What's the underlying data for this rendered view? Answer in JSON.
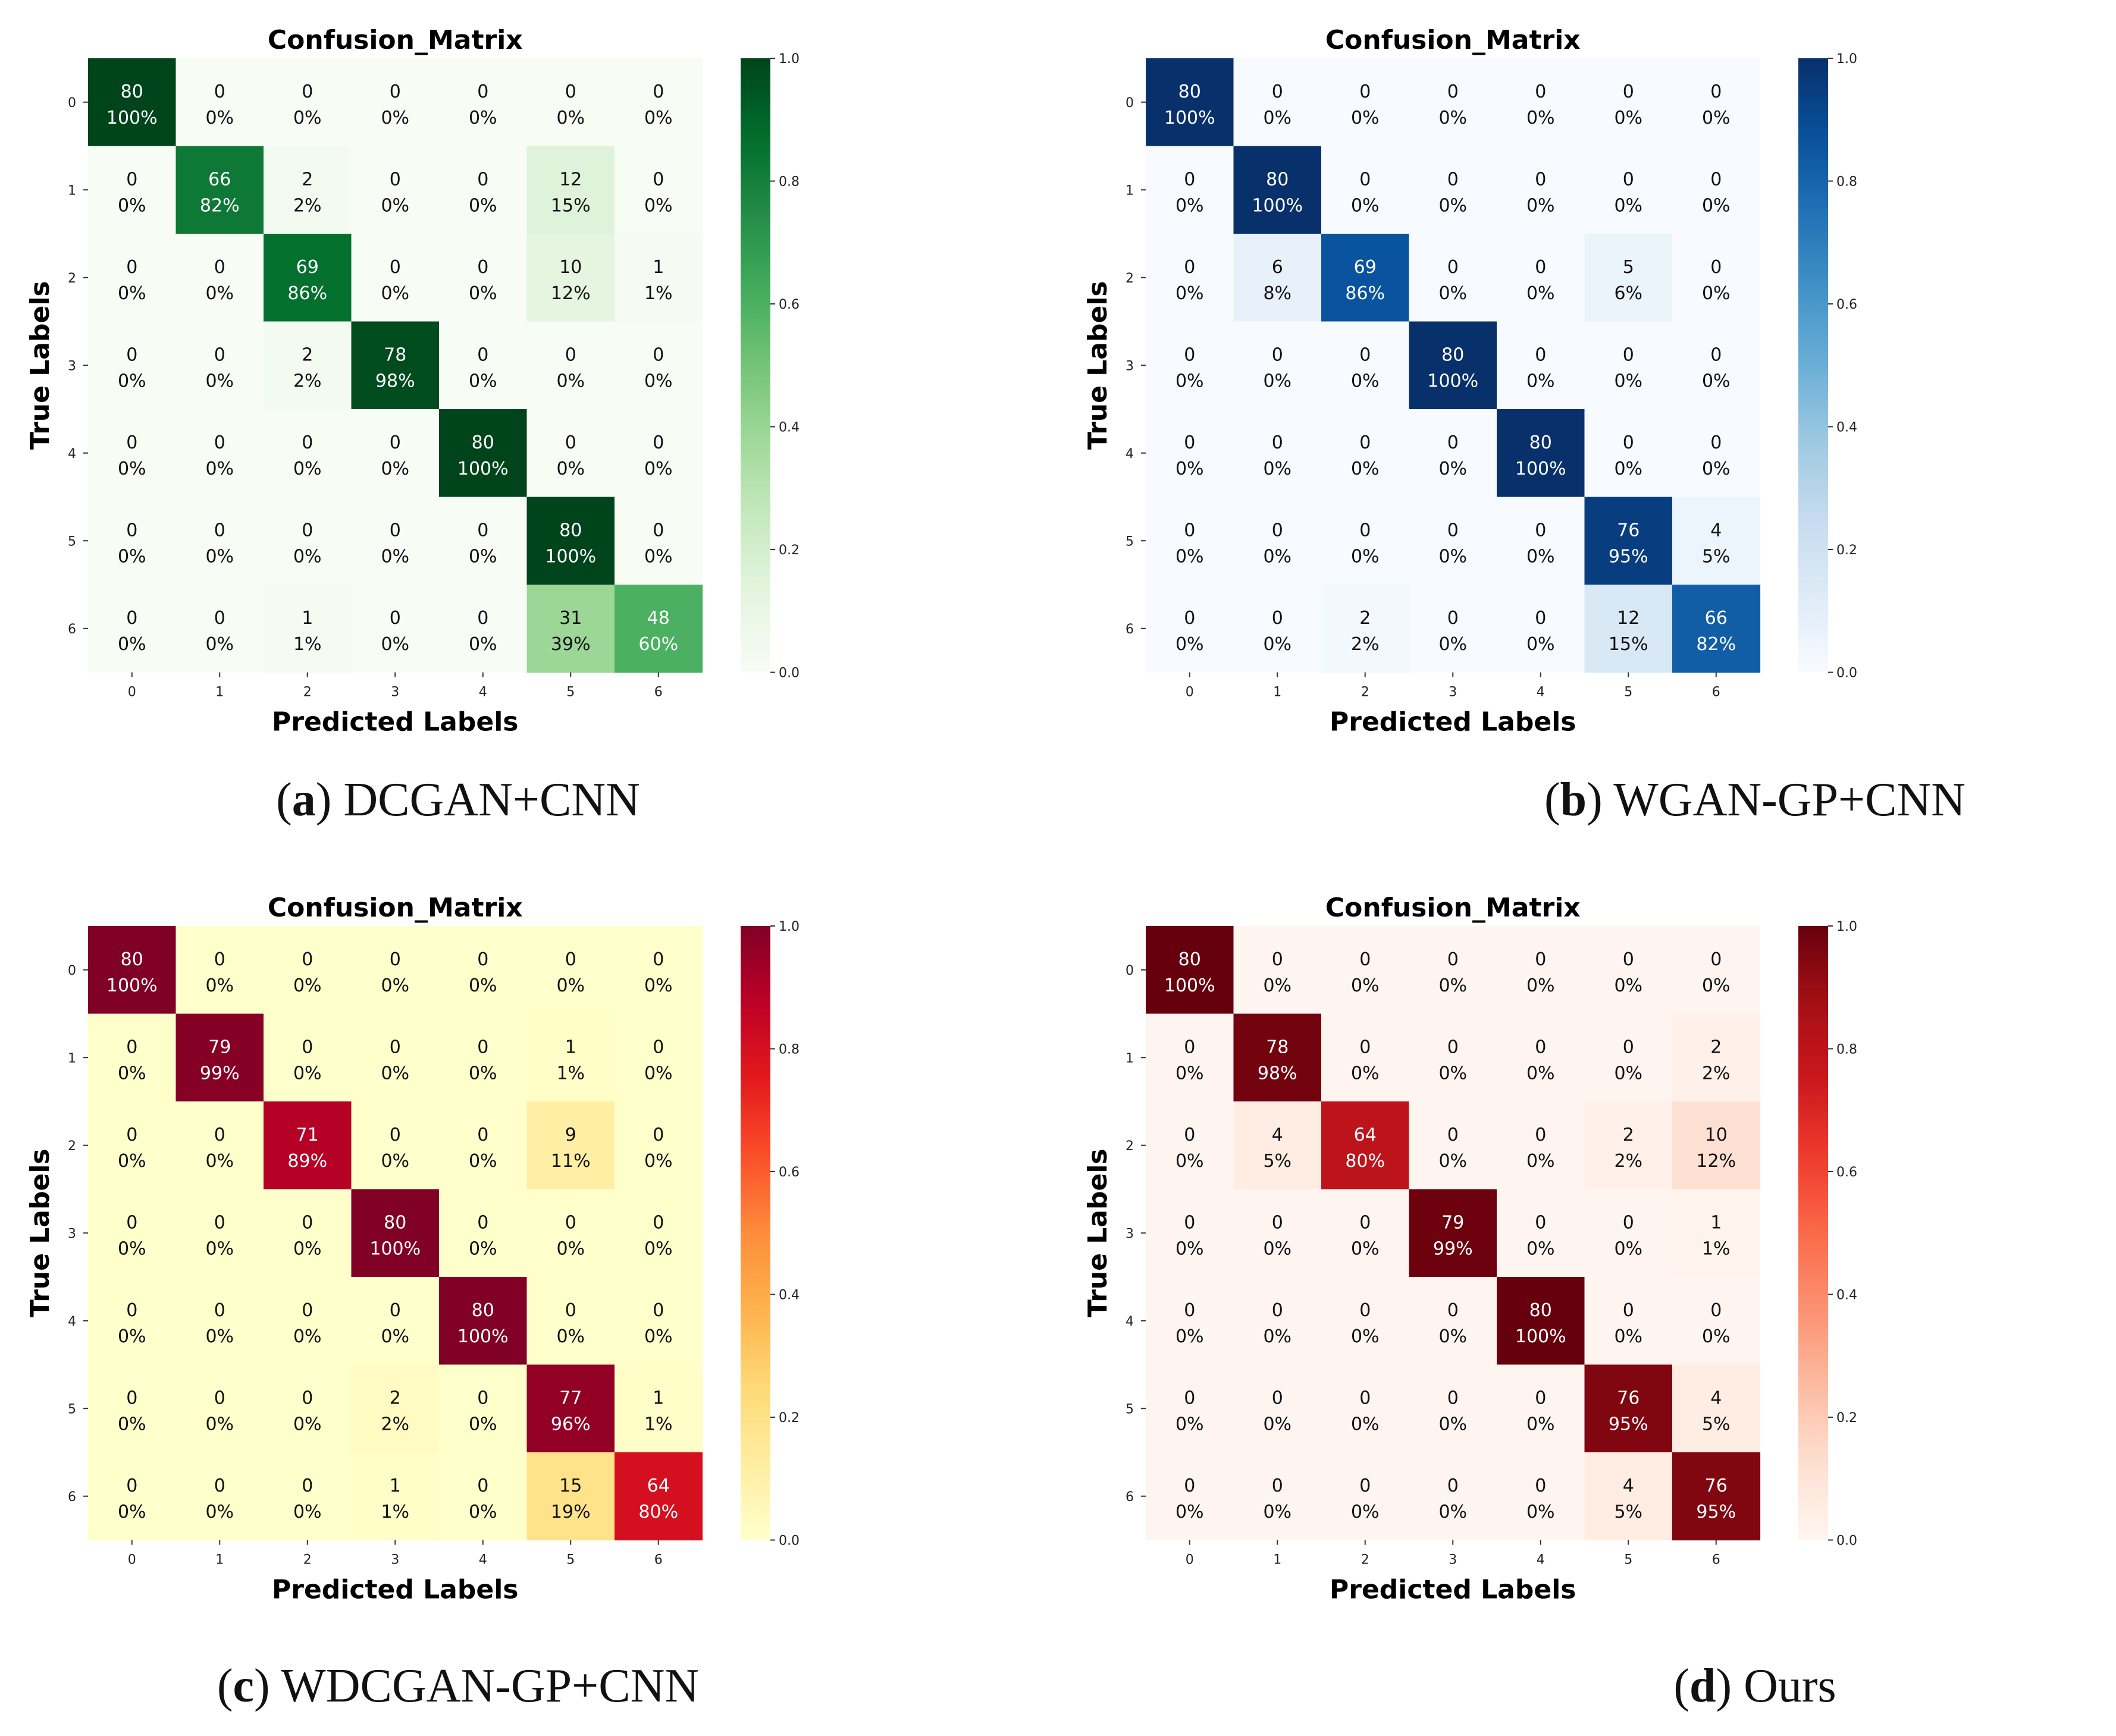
{
  "figure": {
    "captions": [
      {
        "letter": "a",
        "text": "DCGAN+CNN"
      },
      {
        "letter": "b",
        "text": "WGAN-GP+CNN"
      },
      {
        "letter": "c",
        "text": "WDCGAN-GP+CNN"
      },
      {
        "letter": "d",
        "text": "Ours"
      }
    ]
  },
  "chart_data": [
    {
      "type": "heatmap",
      "title": "Confusion_Matrix",
      "xlabel": "Predicted Labels",
      "ylabel": "True Labels",
      "x_ticks": [
        "0",
        "1",
        "2",
        "3",
        "4",
        "5",
        "6"
      ],
      "y_ticks": [
        "0",
        "1",
        "2",
        "3",
        "4",
        "5",
        "6"
      ],
      "colormap": "Greens",
      "color_low": "#f7fcf5",
      "color_high": "#00441b",
      "colorbar_range": [
        0.0,
        1.0
      ],
      "colorbar_ticks": [
        "0.0",
        "0.2",
        "0.4",
        "0.6",
        "0.8",
        "1.0"
      ],
      "counts": [
        [
          80,
          0,
          0,
          0,
          0,
          0,
          0
        ],
        [
          0,
          66,
          2,
          0,
          0,
          12,
          0
        ],
        [
          0,
          0,
          69,
          0,
          0,
          10,
          1
        ],
        [
          0,
          0,
          2,
          78,
          0,
          0,
          0
        ],
        [
          0,
          0,
          0,
          0,
          80,
          0,
          0
        ],
        [
          0,
          0,
          0,
          0,
          0,
          80,
          0
        ],
        [
          0,
          0,
          1,
          0,
          0,
          31,
          48
        ]
      ],
      "percents": [
        [
          "100%",
          "0%",
          "0%",
          "0%",
          "0%",
          "0%",
          "0%"
        ],
        [
          "0%",
          "82%",
          "2%",
          "0%",
          "0%",
          "15%",
          "0%"
        ],
        [
          "0%",
          "0%",
          "86%",
          "0%",
          "0%",
          "12%",
          "1%"
        ],
        [
          "0%",
          "0%",
          "2%",
          "98%",
          "0%",
          "0%",
          "0%"
        ],
        [
          "0%",
          "0%",
          "0%",
          "0%",
          "100%",
          "0%",
          "0%"
        ],
        [
          "0%",
          "0%",
          "0%",
          "0%",
          "0%",
          "100%",
          "0%"
        ],
        [
          "0%",
          "0%",
          "1%",
          "0%",
          "0%",
          "39%",
          "60%"
        ]
      ]
    },
    {
      "type": "heatmap",
      "title": "Confusion_Matrix",
      "xlabel": "Predicted Labels",
      "ylabel": "True Labels",
      "x_ticks": [
        "0",
        "1",
        "2",
        "3",
        "4",
        "5",
        "6"
      ],
      "y_ticks": [
        "0",
        "1",
        "2",
        "3",
        "4",
        "5",
        "6"
      ],
      "colormap": "Blues",
      "color_low": "#f7fbff",
      "color_high": "#08306b",
      "colorbar_range": [
        0.0,
        1.0
      ],
      "colorbar_ticks": [
        "0.0",
        "0.2",
        "0.4",
        "0.6",
        "0.8",
        "1.0"
      ],
      "counts": [
        [
          80,
          0,
          0,
          0,
          0,
          0,
          0
        ],
        [
          0,
          80,
          0,
          0,
          0,
          0,
          0
        ],
        [
          0,
          6,
          69,
          0,
          0,
          5,
          0
        ],
        [
          0,
          0,
          0,
          80,
          0,
          0,
          0
        ],
        [
          0,
          0,
          0,
          0,
          80,
          0,
          0
        ],
        [
          0,
          0,
          0,
          0,
          0,
          76,
          4
        ],
        [
          0,
          0,
          2,
          0,
          0,
          12,
          66
        ]
      ],
      "percents": [
        [
          "100%",
          "0%",
          "0%",
          "0%",
          "0%",
          "0%",
          "0%"
        ],
        [
          "0%",
          "100%",
          "0%",
          "0%",
          "0%",
          "0%",
          "0%"
        ],
        [
          "0%",
          "8%",
          "86%",
          "0%",
          "0%",
          "6%",
          "0%"
        ],
        [
          "0%",
          "0%",
          "0%",
          "100%",
          "0%",
          "0%",
          "0%"
        ],
        [
          "0%",
          "0%",
          "0%",
          "0%",
          "100%",
          "0%",
          "0%"
        ],
        [
          "0%",
          "0%",
          "0%",
          "0%",
          "0%",
          "95%",
          "5%"
        ],
        [
          "0%",
          "0%",
          "2%",
          "0%",
          "0%",
          "15%",
          "82%"
        ]
      ]
    },
    {
      "type": "heatmap",
      "title": "Confusion_Matrix",
      "xlabel": "Predicted Labels",
      "ylabel": "True Labels",
      "x_ticks": [
        "0",
        "1",
        "2",
        "3",
        "4",
        "5",
        "6"
      ],
      "y_ticks": [
        "0",
        "1",
        "2",
        "3",
        "4",
        "5",
        "6"
      ],
      "colormap": "YlOrRd",
      "color_low": "#ffffcc",
      "color_high": "#800026",
      "colorbar_range": [
        0.0,
        1.0
      ],
      "colorbar_ticks": [
        "0.0",
        "0.2",
        "0.4",
        "0.6",
        "0.8",
        "1.0"
      ],
      "counts": [
        [
          80,
          0,
          0,
          0,
          0,
          0,
          0
        ],
        [
          0,
          79,
          0,
          0,
          0,
          1,
          0
        ],
        [
          0,
          0,
          71,
          0,
          0,
          9,
          0
        ],
        [
          0,
          0,
          0,
          80,
          0,
          0,
          0
        ],
        [
          0,
          0,
          0,
          0,
          80,
          0,
          0
        ],
        [
          0,
          0,
          0,
          2,
          0,
          77,
          1
        ],
        [
          0,
          0,
          0,
          1,
          0,
          15,
          64
        ]
      ],
      "percents": [
        [
          "100%",
          "0%",
          "0%",
          "0%",
          "0%",
          "0%",
          "0%"
        ],
        [
          "0%",
          "99%",
          "0%",
          "0%",
          "0%",
          "1%",
          "0%"
        ],
        [
          "0%",
          "0%",
          "89%",
          "0%",
          "0%",
          "11%",
          "0%"
        ],
        [
          "0%",
          "0%",
          "0%",
          "100%",
          "0%",
          "0%",
          "0%"
        ],
        [
          "0%",
          "0%",
          "0%",
          "0%",
          "100%",
          "0%",
          "0%"
        ],
        [
          "0%",
          "0%",
          "0%",
          "2%",
          "0%",
          "96%",
          "1%"
        ],
        [
          "0%",
          "0%",
          "0%",
          "1%",
          "0%",
          "19%",
          "80%"
        ]
      ]
    },
    {
      "type": "heatmap",
      "title": "Confusion_Matrix",
      "xlabel": "Predicted Labels",
      "ylabel": "True Labels",
      "x_ticks": [
        "0",
        "1",
        "2",
        "3",
        "4",
        "5",
        "6"
      ],
      "y_ticks": [
        "0",
        "1",
        "2",
        "3",
        "4",
        "5",
        "6"
      ],
      "colormap": "Reds",
      "color_low": "#fff5f0",
      "color_high": "#67000d",
      "colorbar_range": [
        0.0,
        1.0
      ],
      "colorbar_ticks": [
        "0.0",
        "0.2",
        "0.4",
        "0.6",
        "0.8",
        "1.0"
      ],
      "counts": [
        [
          80,
          0,
          0,
          0,
          0,
          0,
          0
        ],
        [
          0,
          78,
          0,
          0,
          0,
          0,
          2
        ],
        [
          0,
          4,
          64,
          0,
          0,
          2,
          10
        ],
        [
          0,
          0,
          0,
          79,
          0,
          0,
          1
        ],
        [
          0,
          0,
          0,
          0,
          80,
          0,
          0
        ],
        [
          0,
          0,
          0,
          0,
          0,
          76,
          4
        ],
        [
          0,
          0,
          0,
          0,
          0,
          4,
          76
        ]
      ],
      "percents": [
        [
          "100%",
          "0%",
          "0%",
          "0%",
          "0%",
          "0%",
          "0%"
        ],
        [
          "0%",
          "98%",
          "0%",
          "0%",
          "0%",
          "0%",
          "2%"
        ],
        [
          "0%",
          "5%",
          "80%",
          "0%",
          "0%",
          "2%",
          "12%"
        ],
        [
          "0%",
          "0%",
          "0%",
          "99%",
          "0%",
          "0%",
          "1%"
        ],
        [
          "0%",
          "0%",
          "0%",
          "0%",
          "100%",
          "0%",
          "0%"
        ],
        [
          "0%",
          "0%",
          "0%",
          "0%",
          "0%",
          "95%",
          "5%"
        ],
        [
          "0%",
          "0%",
          "0%",
          "0%",
          "0%",
          "5%",
          "95%"
        ]
      ]
    }
  ]
}
